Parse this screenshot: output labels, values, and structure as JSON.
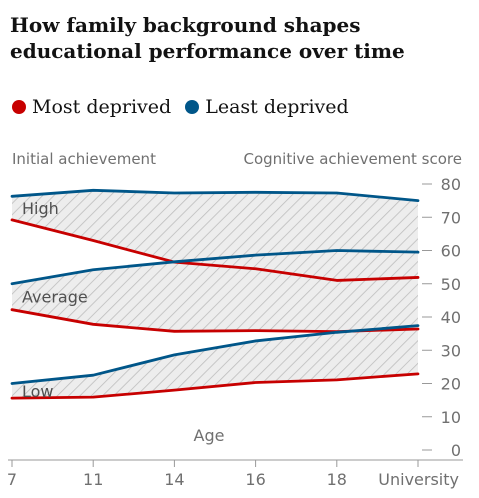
{
  "title": "How family background shapes educational performance over time",
  "legend": [
    {
      "label": "Most deprived",
      "color": "#c70000"
    },
    {
      "label": "Least deprived",
      "color": "#005689"
    }
  ],
  "chart_data": {
    "type": "line",
    "left_axis_label": "Initial achievement",
    "ylabel": "Cognitive achievement score",
    "xlabel": "Age",
    "categories": [
      "7",
      "11",
      "14",
      "16",
      "18",
      "University"
    ],
    "ylim": [
      0,
      80
    ],
    "yticks": [
      0,
      10,
      20,
      30,
      40,
      50,
      60,
      70,
      80
    ],
    "groups": [
      "High",
      "Average",
      "Low"
    ],
    "series": [
      {
        "name": "Least deprived",
        "group": "High",
        "color": "#005689",
        "values": [
          76.3,
          78.1,
          77.3,
          77.5,
          77.3,
          75.0
        ]
      },
      {
        "name": "Most deprived",
        "group": "High",
        "color": "#c70000",
        "values": [
          69.2,
          63.0,
          56.5,
          54.5,
          51.0,
          51.9
        ]
      },
      {
        "name": "Least deprived",
        "group": "Average",
        "color": "#005689",
        "values": [
          50.0,
          54.2,
          56.6,
          58.6,
          60.0,
          59.5
        ]
      },
      {
        "name": "Most deprived",
        "group": "Average",
        "color": "#c70000",
        "values": [
          42.2,
          37.8,
          35.7,
          35.9,
          35.6,
          36.4
        ]
      },
      {
        "name": "Least deprived",
        "group": "Low",
        "color": "#005689",
        "values": [
          20.0,
          22.5,
          28.6,
          32.8,
          35.4,
          37.4
        ]
      },
      {
        "name": "Most deprived",
        "group": "Low",
        "color": "#c70000",
        "values": [
          15.6,
          15.9,
          18.0,
          20.3,
          21.1,
          22.9
        ]
      }
    ],
    "grid": false,
    "legend_position": "top-left"
  }
}
